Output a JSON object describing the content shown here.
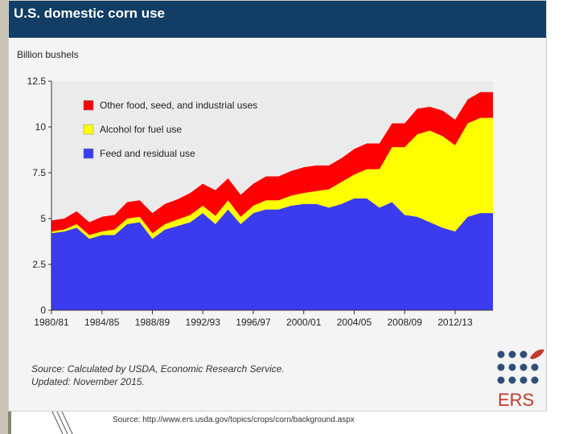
{
  "chart_data": {
    "type": "area",
    "title": "U.S. domestic corn use",
    "ylabel": "Billion bushels",
    "xlabel": "",
    "ylim": [
      0,
      12.5
    ],
    "yticks": [
      0,
      2.5,
      5,
      7.5,
      10,
      12.5
    ],
    "ytick_labels": [
      "0",
      "2.5",
      "5",
      "7.5",
      "10",
      "12.5"
    ],
    "xtick_labels": [
      "1980/81",
      "1984/85",
      "1988/89",
      "1992/93",
      "1996/97",
      "2000/01",
      "2004/05",
      "2008/09",
      "2012/13"
    ],
    "xtick_index": [
      0,
      4,
      8,
      12,
      16,
      20,
      24,
      28,
      32
    ],
    "x": [
      "1980/81",
      "1981/82",
      "1982/83",
      "1983/84",
      "1984/85",
      "1985/86",
      "1986/87",
      "1987/88",
      "1988/89",
      "1989/90",
      "1990/91",
      "1991/92",
      "1992/93",
      "1993/94",
      "1994/95",
      "1995/96",
      "1996/97",
      "1997/98",
      "1998/99",
      "1999/00",
      "2000/01",
      "2001/02",
      "2002/03",
      "2003/04",
      "2004/05",
      "2005/06",
      "2006/07",
      "2007/08",
      "2008/09",
      "2009/10",
      "2010/11",
      "2011/12",
      "2012/13",
      "2013/14",
      "2014/15",
      "2015/16"
    ],
    "series": [
      {
        "name": "Feed and residual use",
        "color": "#3b3bf0",
        "values": [
          4.2,
          4.3,
          4.5,
          3.9,
          4.1,
          4.1,
          4.7,
          4.8,
          3.9,
          4.4,
          4.6,
          4.8,
          5.3,
          4.7,
          5.5,
          4.7,
          5.3,
          5.5,
          5.5,
          5.7,
          5.8,
          5.8,
          5.6,
          5.8,
          6.1,
          6.1,
          5.6,
          5.9,
          5.2,
          5.1,
          4.8,
          4.5,
          4.3,
          5.1,
          5.3,
          5.3
        ]
      },
      {
        "name": "Alcohol for fuel use",
        "color": "#ffff00",
        "values": [
          0.1,
          0.1,
          0.2,
          0.2,
          0.2,
          0.3,
          0.3,
          0.3,
          0.3,
          0.3,
          0.35,
          0.4,
          0.4,
          0.45,
          0.5,
          0.4,
          0.4,
          0.5,
          0.5,
          0.55,
          0.6,
          0.7,
          1.0,
          1.2,
          1.3,
          1.6,
          2.1,
          3.0,
          3.7,
          4.5,
          5.0,
          5.0,
          4.7,
          5.1,
          5.2,
          5.2
        ]
      },
      {
        "name": "Other food, seed, and industrial uses",
        "color": "#ff0000",
        "values": [
          0.6,
          0.6,
          0.7,
          0.7,
          0.8,
          0.8,
          0.9,
          0.9,
          1.1,
          1.1,
          1.1,
          1.2,
          1.2,
          1.4,
          1.2,
          1.2,
          1.2,
          1.3,
          1.3,
          1.35,
          1.4,
          1.4,
          1.3,
          1.3,
          1.4,
          1.4,
          1.4,
          1.3,
          1.3,
          1.4,
          1.3,
          1.4,
          1.4,
          1.3,
          1.4,
          1.4
        ]
      }
    ],
    "legend": {
      "placement": "top-left",
      "order": [
        "Other food, seed, and industrial uses",
        "Alcohol for fuel use",
        "Feed and residual use"
      ]
    },
    "grid": false
  },
  "source_note": {
    "line1": "Source: Calculated by USDA, Economic Research Service.",
    "line2": "Updated: November 2015."
  },
  "logo": {
    "text": "ERS"
  },
  "footer": {
    "source_url": "Source: http://www.ers.usda.gov/topics/crops/corn/background.aspx"
  },
  "colors": {
    "header_bg": "#123d64",
    "plot_bg": "#ebebeb"
  }
}
